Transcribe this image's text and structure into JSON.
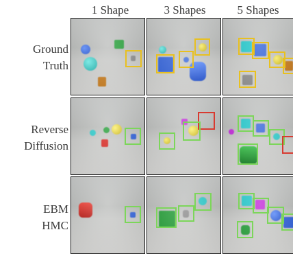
{
  "columns": [
    "1 Shape",
    "3 Shapes",
    "5 Shapes"
  ],
  "rows": [
    {
      "line1": "Ground",
      "line2": "Truth"
    },
    {
      "line1": "Reverse",
      "line2": "Diffusion"
    },
    {
      "line1": "EBM",
      "line2": "HMC"
    }
  ],
  "colors": {
    "ground_truth_box": "#e8c020",
    "prediction_box": "#7cd65a",
    "error_box": "#d83a30"
  }
}
